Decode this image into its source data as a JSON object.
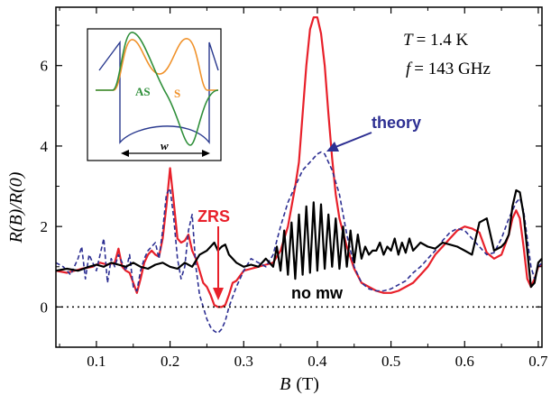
{
  "chart_data": {
    "type": "line",
    "title": "",
    "xlabel_var": "B",
    "xlabel_unit": "(T)",
    "ylabel_text": "R(B)/R(0)",
    "xlim": [
      0.045,
      0.705
    ],
    "ylim": [
      -1.0,
      7.45
    ],
    "xticks": [
      0.1,
      0.2,
      0.3,
      0.4,
      0.5,
      0.6,
      0.7
    ],
    "xtick_labels": [
      "0.1",
      "0.2",
      "0.3",
      "0.4",
      "0.5",
      "0.6",
      "0.7"
    ],
    "yticks": [
      0,
      2,
      4,
      6
    ],
    "ytick_labels": [
      "0",
      "2",
      "4",
      "6"
    ],
    "grid": false,
    "legend": "none",
    "conditions": {
      "T_var": "T",
      "T_value": "= 1.4 K",
      "f_var": "f",
      "f_value": "= 143 GHz"
    },
    "annotations": {
      "zrs": "ZRS",
      "theory": "theory",
      "no_mw": "no mw"
    },
    "series": [
      {
        "color": "#e8202a",
        "style": "solid",
        "x": [
          0.045,
          0.06,
          0.08,
          0.095,
          0.105,
          0.115,
          0.125,
          0.13,
          0.135,
          0.14,
          0.145,
          0.15,
          0.155,
          0.16,
          0.165,
          0.17,
          0.175,
          0.18,
          0.185,
          0.19,
          0.195,
          0.2,
          0.205,
          0.21,
          0.215,
          0.22,
          0.225,
          0.23,
          0.235,
          0.24,
          0.245,
          0.25,
          0.255,
          0.26,
          0.265,
          0.27,
          0.275,
          0.28,
          0.285,
          0.29,
          0.3,
          0.31,
          0.32,
          0.33,
          0.34,
          0.35,
          0.36,
          0.37,
          0.375,
          0.38,
          0.385,
          0.39,
          0.395,
          0.4,
          0.405,
          0.41,
          0.415,
          0.42,
          0.425,
          0.43,
          0.44,
          0.45,
          0.46,
          0.47,
          0.48,
          0.49,
          0.5,
          0.51,
          0.52,
          0.53,
          0.54,
          0.55,
          0.56,
          0.57,
          0.58,
          0.59,
          0.6,
          0.61,
          0.62,
          0.625,
          0.63,
          0.64,
          0.65,
          0.66,
          0.665,
          0.67,
          0.675,
          0.68,
          0.685,
          0.69,
          0.695,
          0.7,
          0.705
        ],
        "y": [
          0.9,
          0.85,
          0.95,
          1.0,
          1.1,
          1.05,
          1.1,
          1.45,
          1.0,
          0.9,
          0.85,
          0.6,
          0.35,
          0.7,
          1.1,
          1.3,
          1.4,
          1.3,
          1.25,
          1.7,
          2.5,
          3.45,
          2.6,
          1.7,
          1.6,
          1.65,
          1.8,
          1.4,
          1.2,
          0.9,
          0.6,
          0.5,
          0.3,
          0.05,
          0.0,
          0.0,
          0.05,
          0.3,
          0.6,
          0.65,
          0.9,
          0.95,
          1.0,
          1.05,
          1.1,
          1.4,
          2.0,
          3.0,
          3.6,
          4.8,
          6.0,
          6.9,
          7.2,
          7.2,
          6.8,
          6.0,
          4.8,
          3.7,
          2.8,
          2.2,
          1.5,
          0.95,
          0.6,
          0.5,
          0.4,
          0.35,
          0.35,
          0.4,
          0.5,
          0.6,
          0.8,
          1.0,
          1.3,
          1.5,
          1.7,
          1.9,
          2.0,
          1.95,
          1.85,
          1.6,
          1.35,
          1.2,
          1.3,
          1.8,
          2.2,
          2.4,
          2.2,
          1.5,
          0.7,
          0.5,
          0.7,
          1.0,
          1.05
        ]
      },
      {
        "color": "#2d2f92",
        "style": "dashed",
        "x": [
          0.045,
          0.055,
          0.065,
          0.075,
          0.08,
          0.085,
          0.09,
          0.1,
          0.11,
          0.115,
          0.12,
          0.125,
          0.13,
          0.14,
          0.145,
          0.15,
          0.155,
          0.16,
          0.165,
          0.17,
          0.18,
          0.185,
          0.19,
          0.195,
          0.2,
          0.205,
          0.21,
          0.215,
          0.22,
          0.225,
          0.23,
          0.235,
          0.24,
          0.25,
          0.255,
          0.26,
          0.265,
          0.27,
          0.275,
          0.28,
          0.29,
          0.3,
          0.31,
          0.32,
          0.33,
          0.34,
          0.35,
          0.36,
          0.37,
          0.38,
          0.39,
          0.4,
          0.405,
          0.41,
          0.415,
          0.42,
          0.43,
          0.44,
          0.45,
          0.46,
          0.47,
          0.48,
          0.49,
          0.5,
          0.51,
          0.52,
          0.53,
          0.54,
          0.55,
          0.56,
          0.57,
          0.58,
          0.59,
          0.6,
          0.61,
          0.62,
          0.63,
          0.64,
          0.65,
          0.66,
          0.67,
          0.675,
          0.68,
          0.685,
          0.69,
          0.695,
          0.7,
          0.705
        ],
        "y": [
          1.1,
          1.0,
          0.8,
          1.2,
          1.5,
          0.7,
          1.3,
          0.9,
          1.7,
          0.6,
          1.2,
          1.0,
          1.3,
          0.9,
          1.3,
          0.5,
          0.4,
          0.9,
          1.2,
          1.4,
          1.6,
          1.2,
          1.9,
          2.8,
          2.95,
          2.2,
          1.2,
          0.7,
          1.0,
          1.9,
          2.3,
          1.0,
          0.3,
          -0.3,
          -0.5,
          -0.6,
          -0.65,
          -0.55,
          -0.35,
          0.0,
          0.5,
          0.9,
          1.2,
          1.1,
          1.0,
          1.3,
          2.0,
          2.6,
          3.0,
          3.4,
          3.6,
          3.8,
          3.85,
          3.8,
          3.6,
          3.4,
          2.8,
          1.8,
          1.0,
          0.6,
          0.45,
          0.4,
          0.4,
          0.45,
          0.55,
          0.65,
          0.85,
          1.0,
          1.2,
          1.4,
          1.65,
          1.85,
          1.95,
          1.9,
          1.7,
          1.5,
          1.3,
          1.35,
          1.7,
          2.2,
          2.6,
          2.7,
          2.4,
          1.7,
          1.0,
          0.7,
          1.0,
          1.1
        ]
      },
      {
        "color": "#000000",
        "style": "solid",
        "x": [
          0.045,
          0.06,
          0.075,
          0.09,
          0.1,
          0.11,
          0.12,
          0.13,
          0.14,
          0.15,
          0.16,
          0.17,
          0.18,
          0.19,
          0.2,
          0.21,
          0.22,
          0.23,
          0.24,
          0.25,
          0.255,
          0.26,
          0.265,
          0.27,
          0.275,
          0.28,
          0.29,
          0.3,
          0.31,
          0.32,
          0.33,
          0.34,
          0.345,
          0.35,
          0.355,
          0.36,
          0.365,
          0.37,
          0.375,
          0.38,
          0.385,
          0.39,
          0.395,
          0.4,
          0.405,
          0.41,
          0.415,
          0.42,
          0.425,
          0.43,
          0.435,
          0.44,
          0.445,
          0.45,
          0.455,
          0.46,
          0.465,
          0.47,
          0.475,
          0.48,
          0.485,
          0.49,
          0.495,
          0.5,
          0.505,
          0.51,
          0.515,
          0.52,
          0.525,
          0.53,
          0.54,
          0.55,
          0.56,
          0.57,
          0.58,
          0.59,
          0.6,
          0.61,
          0.62,
          0.63,
          0.64,
          0.65,
          0.655,
          0.66,
          0.665,
          0.67,
          0.675,
          0.68,
          0.685,
          0.69,
          0.695,
          0.7,
          0.705
        ],
        "y": [
          0.9,
          0.95,
          0.9,
          1.0,
          1.05,
          1.0,
          1.1,
          1.05,
          1.0,
          1.1,
          1.0,
          0.95,
          1.05,
          1.1,
          1.0,
          0.95,
          1.1,
          1.0,
          1.3,
          1.4,
          1.5,
          1.6,
          1.4,
          1.5,
          1.55,
          1.3,
          1.1,
          1.0,
          1.05,
          1.0,
          1.2,
          1.0,
          1.5,
          0.9,
          1.9,
          0.8,
          2.1,
          0.7,
          2.3,
          0.8,
          2.5,
          0.85,
          2.6,
          0.9,
          2.55,
          0.95,
          2.3,
          1.0,
          2.2,
          0.95,
          2.0,
          1.0,
          1.9,
          1.1,
          1.8,
          1.2,
          1.5,
          1.3,
          1.4,
          1.4,
          1.6,
          1.3,
          1.5,
          1.4,
          1.7,
          1.3,
          1.6,
          1.35,
          1.7,
          1.4,
          1.6,
          1.5,
          1.45,
          1.6,
          1.55,
          1.5,
          1.4,
          1.3,
          2.1,
          2.2,
          1.4,
          1.5,
          1.6,
          1.8,
          2.5,
          2.9,
          2.85,
          2.3,
          1.4,
          0.5,
          0.6,
          1.1,
          1.2
        ]
      }
    ]
  },
  "inset": {
    "label_s": "S",
    "label_as": "AS",
    "label_w": "w"
  },
  "colors": {
    "red": "#e8202a",
    "blue": "#2d2f92",
    "black": "#000000",
    "orange": "#f0922b",
    "green": "#2f8f3a",
    "inset_blue": "#2a3a8f"
  }
}
